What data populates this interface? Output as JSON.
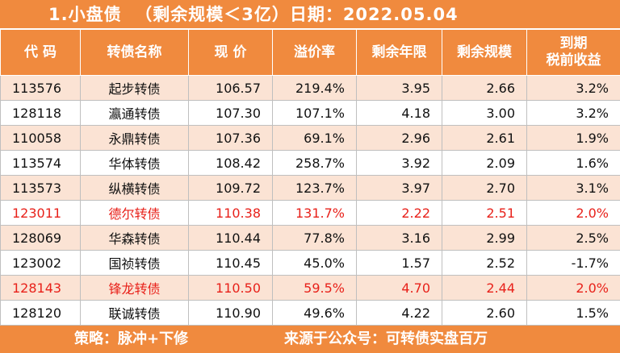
{
  "title": "1.小盘债  （剩余规模＜3亿）日期：2022.05.04",
  "headers": [
    "代 码",
    "转债名称",
    "现 价",
    "溢价率",
    "剩余年限",
    "剩余规模",
    "到期\n税前收益"
  ],
  "rows": [
    {
      "code": "113576",
      "name": "起步转债",
      "price": "106.57",
      "premium": "219.4%",
      "years": "3.95",
      "scale": "2.66",
      "ytm": "3.2%",
      "highlight": false
    },
    {
      "code": "128118",
      "name": "瀛通转债",
      "price": "107.30",
      "premium": "107.1%",
      "years": "4.18",
      "scale": "3.00",
      "ytm": "3.2%",
      "highlight": false
    },
    {
      "code": "110058",
      "name": "永鼎转债",
      "price": "107.36",
      "premium": "69.1%",
      "years": "2.96",
      "scale": "2.61",
      "ytm": "1.9%",
      "highlight": false
    },
    {
      "code": "113574",
      "name": "华体转债",
      "price": "108.42",
      "premium": "258.7%",
      "years": "3.92",
      "scale": "2.09",
      "ytm": "1.6%",
      "highlight": false
    },
    {
      "code": "113573",
      "name": "纵横转债",
      "price": "109.72",
      "premium": "123.7%",
      "years": "3.97",
      "scale": "2.70",
      "ytm": "3.1%",
      "highlight": false
    },
    {
      "code": "123011",
      "name": "德尔转债",
      "price": "110.38",
      "premium": "131.7%",
      "years": "2.22",
      "scale": "2.51",
      "ytm": "2.0%",
      "highlight": true
    },
    {
      "code": "128069",
      "name": "华森转债",
      "price": "110.44",
      "premium": "77.8%",
      "years": "3.16",
      "scale": "2.99",
      "ytm": "2.5%",
      "highlight": false
    },
    {
      "code": "123002",
      "name": "国祯转债",
      "price": "110.45",
      "premium": "45.0%",
      "years": "1.57",
      "scale": "2.52",
      "ytm": "-1.7%",
      "highlight": false
    },
    {
      "code": "128143",
      "name": "锋龙转债",
      "price": "110.50",
      "premium": "59.5%",
      "years": "4.70",
      "scale": "2.44",
      "ytm": "2.0%",
      "highlight": true
    },
    {
      "code": "128120",
      "name": "联诚转债",
      "price": "110.90",
      "premium": "49.6%",
      "years": "4.22",
      "scale": "2.60",
      "ytm": "1.5%",
      "highlight": false
    }
  ],
  "footer": {
    "strategy": "策略：脉冲+下修",
    "source": "来源于公众号：可转债实盘百万"
  },
  "colors": {
    "header_bg": "#f08a3e",
    "row_odd_bg": "#fbe3d4",
    "highlight_text": "#e8211a"
  }
}
